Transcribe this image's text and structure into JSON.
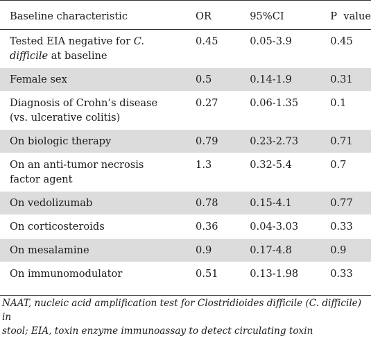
{
  "table": {
    "headers": [
      "Baseline characteristic",
      "OR",
      "95%CI",
      "P  value"
    ],
    "rows": [
      {
        "characteristic_line1": "Tested EIA negative for ",
        "characteristic_italic1": "C.",
        "characteristic_italic2": "difficile",
        "characteristic_line2": " at baseline",
        "or": "0.45",
        "ci": "0.05-3.9",
        "p": "0.45"
      },
      {
        "characteristic": "Female sex",
        "or": "0.5",
        "ci": "0.14-1.9",
        "p": "0.31"
      },
      {
        "characteristic_line1": "Diagnosis of Crohn’s disease",
        "characteristic_line2": "(vs. ulcerative colitis)",
        "or": "0.27",
        "ci": "0.06-1.35",
        "p": "0.1"
      },
      {
        "characteristic": "On biologic therapy",
        "or": "0.79",
        "ci": "0.23-2.73",
        "p": "0.71"
      },
      {
        "characteristic_line1": "On an anti-tumor necrosis",
        "characteristic_line2": "factor agent",
        "or": "1.3",
        "ci": "0.32-5.4",
        "p": "0.7"
      },
      {
        "characteristic": "On vedolizumab",
        "or": "0.78",
        "ci": "0.15-4.1",
        "p": "0.77"
      },
      {
        "characteristic": "On corticosteroids",
        "or": "0.36",
        "ci": "0.04-3.03",
        "p": "0.33"
      },
      {
        "characteristic": "On mesalamine",
        "or": "0.9",
        "ci": "0.17-4.8",
        "p": "0.9"
      },
      {
        "characteristic": "On immunomodulator",
        "or": "0.51",
        "ci": "0.13-1.98",
        "p": "0.33"
      }
    ]
  },
  "footnote": {
    "line1": "NAAT, nucleic acid amplification test for Clostridioides difficile (C. difficile) in",
    "line2": "stool; EIA, toxin enzyme immunoassay to detect circulating toxin"
  },
  "colors": {
    "shaded_row": "#dcdcdc",
    "rule": "#333333",
    "text": "#1a1a1a"
  }
}
